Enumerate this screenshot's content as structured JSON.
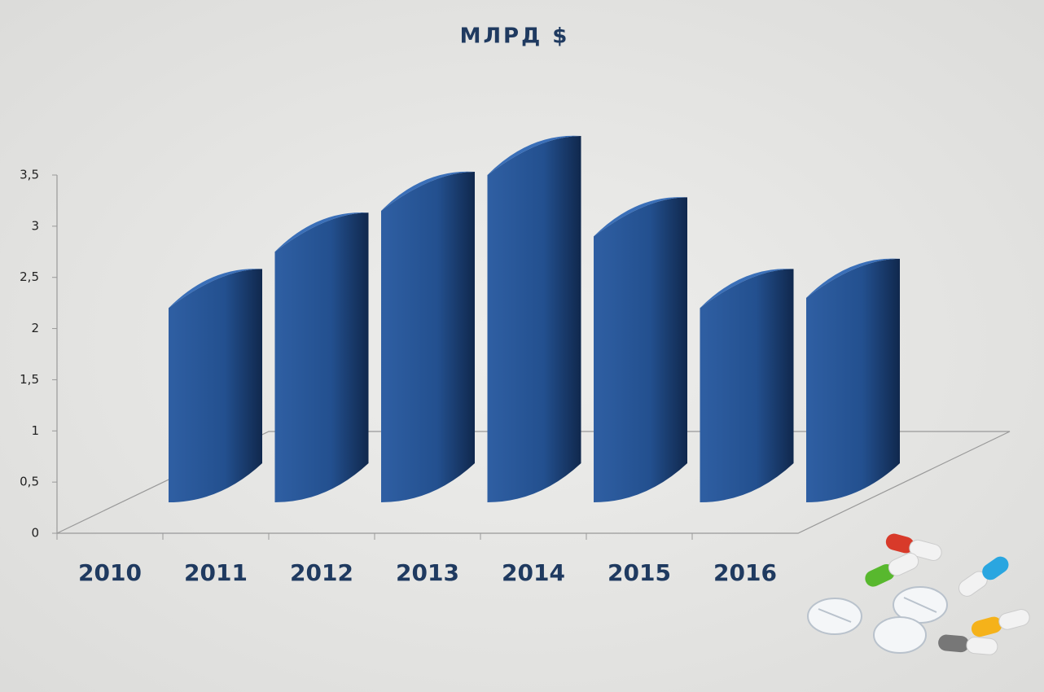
{
  "chart_data": {
    "type": "bar3d",
    "title": "МЛРД $",
    "categories": [
      "2010",
      "2011",
      "2012",
      "2013",
      "2014",
      "2015",
      "2016"
    ],
    "values": [
      2.2,
      2.75,
      3.15,
      3.5,
      2.9,
      2.2,
      2.3
    ],
    "color": "#23508f",
    "ylim": [
      0,
      3.5
    ],
    "yticks": [
      0,
      {
        "value": 0.5,
        "label": "0,5"
      },
      1,
      {
        "value": 1.5,
        "label": "1,5"
      },
      2,
      {
        "value": 2.5,
        "label": "2,5"
      },
      3,
      {
        "value": 3.5,
        "label": "3,5"
      }
    ]
  }
}
